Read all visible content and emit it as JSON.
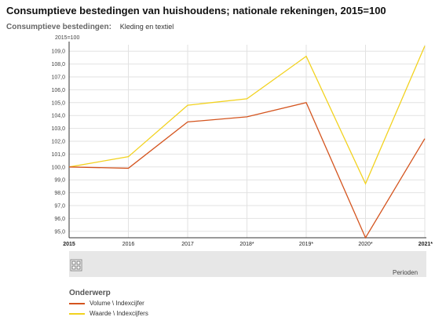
{
  "title": "Consumptieve bestedingen van huishoudens; nationale rekeningen, 2015=100",
  "filter": {
    "label": "Consumptieve bestedingen:",
    "value": "Kleding en textiel"
  },
  "colors": {
    "volume": "#d4541e",
    "waarde": "#f2d21f",
    "grid": "#e2e2e2",
    "axis": "#333333",
    "band": "#e7e7e7"
  },
  "logo_icon": "cbs-logo-icon",
  "chart_data": {
    "type": "line",
    "title": "",
    "ylabel": "2015=100",
    "xlabel": "Perioden",
    "ylim": [
      94.5,
      109.5
    ],
    "yticks": [
      95.0,
      96.0,
      97.0,
      98.0,
      99.0,
      100.0,
      101.0,
      102.0,
      103.0,
      104.0,
      105.0,
      106.0,
      107.0,
      108.0,
      109.0
    ],
    "ytick_labels": [
      "95,0",
      "96,0",
      "97,0",
      "98,0",
      "99,0",
      "100,0",
      "101,0",
      "102,0",
      "103,0",
      "104,0",
      "105,0",
      "106,0",
      "107,0",
      "108,0",
      "109,0"
    ],
    "categories": [
      "2015",
      "2016",
      "2017",
      "2018*",
      "2019*",
      "2020*",
      "2021*"
    ],
    "bold_categories": [
      "2015",
      "2021*"
    ],
    "grid": true,
    "legend_title": "Onderwerp",
    "legend_position": "bottom-left",
    "series": [
      {
        "name": "Volume \\ Indexcijfer",
        "color": "#d4541e",
        "values": [
          100.0,
          99.9,
          103.5,
          103.9,
          105.0,
          94.5,
          102.2
        ]
      },
      {
        "name": "Waarde \\ Indexcijfers",
        "color": "#f2d21f",
        "values": [
          100.0,
          100.8,
          104.8,
          105.3,
          108.6,
          98.7,
          109.4
        ]
      }
    ]
  }
}
